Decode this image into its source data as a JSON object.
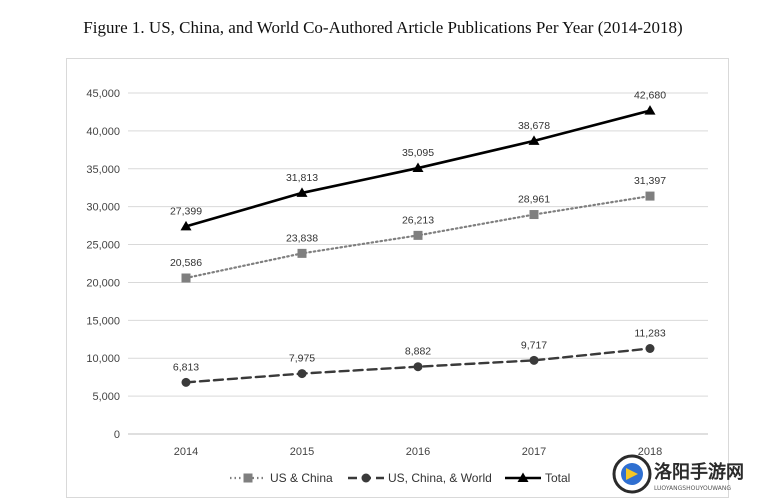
{
  "figure": {
    "title": "Figure 1. US, China, and World Co-Authored Article Publications Per Year (2014-2018)"
  },
  "watermark": {
    "text": "洛阳手游网",
    "subtext": "LUOYANGSHOUYOUWANG"
  },
  "chart_data": {
    "type": "line",
    "title": "Figure 1. US, China, and World Co-Authored Article Publications Per Year (2014-2018)",
    "categories": [
      "2014",
      "2015",
      "2016",
      "2017",
      "2018"
    ],
    "ylim": [
      0,
      45000
    ],
    "yticks": [
      0,
      5000,
      10000,
      15000,
      20000,
      25000,
      30000,
      35000,
      40000,
      45000
    ],
    "ytick_labels": [
      "0",
      "5,000",
      "10,000",
      "15,000",
      "20,000",
      "25,000",
      "30,000",
      "35,000",
      "40,000",
      "45,000"
    ],
    "grid": true,
    "legend_position": "bottom",
    "series": [
      {
        "name": "US & China",
        "values": [
          20586,
          23838,
          26213,
          28961,
          31397
        ],
        "labels": [
          "20,586",
          "23,838",
          "26,213",
          "28,961",
          "31,397"
        ],
        "color": "#7f7f7f",
        "line_style": "dotted",
        "marker": "square"
      },
      {
        "name": "US, China, & World",
        "values": [
          6813,
          7975,
          8882,
          9717,
          11283
        ],
        "labels": [
          "6,813",
          "7,975",
          "8,882",
          "9,717",
          "11,283"
        ],
        "color": "#3a3a3a",
        "line_style": "dashed",
        "marker": "circle"
      },
      {
        "name": "Total",
        "values": [
          27399,
          31813,
          35095,
          38678,
          42680
        ],
        "labels": [
          "27,399",
          "31,813",
          "35,095",
          "38,678",
          "42,680"
        ],
        "color": "#000000",
        "line_style": "solid",
        "marker": "triangle"
      }
    ]
  }
}
